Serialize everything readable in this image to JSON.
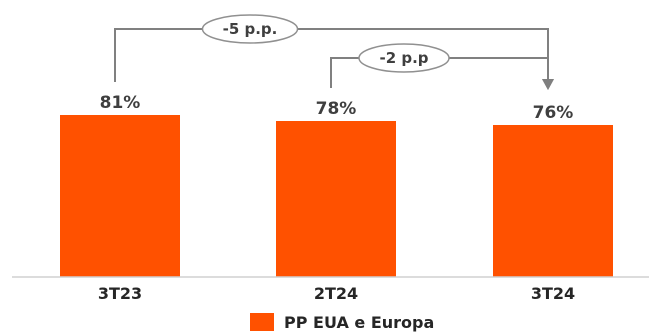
{
  "chart_data": {
    "type": "bar",
    "categories": [
      "3T23",
      "2T24",
      "3T24"
    ],
    "series": [
      {
        "name": "PP EUA e Europa",
        "values": [
          81,
          78,
          76
        ],
        "color": "#ff5100"
      }
    ],
    "data_labels": [
      "81%",
      "78%",
      "76%"
    ],
    "ylim": [
      0,
      100
    ],
    "grid": false,
    "legend": "bottom",
    "annotations": [
      {
        "text": "-5 p.p.",
        "from": "3T23",
        "to": "3T24"
      },
      {
        "text": "-2 p.p",
        "from": "2T24",
        "to": "3T24"
      }
    ]
  }
}
